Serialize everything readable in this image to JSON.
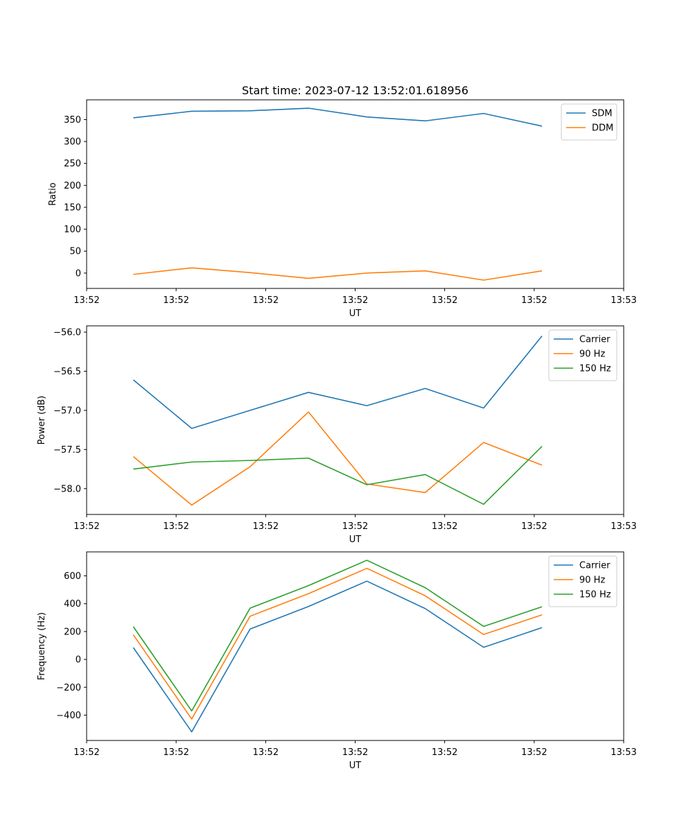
{
  "figure": {
    "title": "Start time: 2023-07-12 13:52:01.618956"
  },
  "colors": {
    "c0": "#1f77b4",
    "c1": "#ff7f0e",
    "c2": "#2ca02c"
  },
  "chart_data": [
    {
      "type": "line",
      "title": "Start time: 2023-07-12 13:52:01.618956",
      "xlabel": "UT",
      "ylabel": "Ratio",
      "x": [
        1,
        2,
        3,
        4,
        5,
        6,
        7,
        8
      ],
      "xlim": [
        0.2,
        9.4
      ],
      "x_ticks": [
        0.2,
        1.733,
        3.267,
        4.8,
        6.333,
        7.867,
        9.4
      ],
      "x_tick_labels": [
        "13:52",
        "13:52",
        "13:52",
        "13:52",
        "13:52",
        "13:52",
        "13:53"
      ],
      "ylim": [
        -35,
        395
      ],
      "y_ticks": [
        0,
        50,
        100,
        150,
        200,
        250,
        300,
        350
      ],
      "y_tick_labels": [
        "0",
        "50",
        "100",
        "150",
        "200",
        "250",
        "300",
        "350"
      ],
      "legend_position": "top-right",
      "series": [
        {
          "name": "SDM",
          "color_key": "c0",
          "values": [
            354,
            369,
            370,
            376,
            356,
            347,
            364,
            335
          ]
        },
        {
          "name": "DDM",
          "color_key": "c1",
          "values": [
            -3,
            12,
            1,
            -12,
            0,
            5,
            -16,
            5
          ]
        }
      ]
    },
    {
      "type": "line",
      "title": "",
      "xlabel": "UT",
      "ylabel": "Power (dB)",
      "x": [
        1,
        2,
        3,
        4,
        5,
        6,
        7,
        8
      ],
      "xlim": [
        0.2,
        9.4
      ],
      "x_ticks": [
        0.2,
        1.733,
        3.267,
        4.8,
        6.333,
        7.867,
        9.4
      ],
      "x_tick_labels": [
        "13:52",
        "13:52",
        "13:52",
        "13:52",
        "13:52",
        "13:52",
        "13:53"
      ],
      "ylim": [
        -58.33,
        -55.92
      ],
      "y_ticks": [
        -58.0,
        -57.5,
        -57.0,
        -56.5,
        -56.0
      ],
      "y_tick_labels": [
        "−58.0",
        "−57.5",
        "−57.0",
        "−56.5",
        "−56.0"
      ],
      "legend_position": "top-right",
      "series": [
        {
          "name": "Carrier",
          "color_key": "c0",
          "values": [
            -56.61,
            -57.23,
            -57.0,
            -56.77,
            -56.94,
            -56.72,
            -56.97,
            -56.05
          ]
        },
        {
          "name": "90 Hz",
          "color_key": "c1",
          "values": [
            -57.59,
            -58.21,
            -57.72,
            -57.02,
            -57.94,
            -58.05,
            -57.41,
            -57.7
          ]
        },
        {
          "name": "150 Hz",
          "color_key": "c2",
          "values": [
            -57.75,
            -57.66,
            -57.64,
            -57.61,
            -57.95,
            -57.82,
            -58.2,
            -57.46
          ]
        }
      ]
    },
    {
      "type": "line",
      "title": "",
      "xlabel": "UT",
      "ylabel": "Frequency (Hz)",
      "x": [
        1,
        2,
        3,
        4,
        5,
        6,
        7,
        8
      ],
      "xlim": [
        0.2,
        9.4
      ],
      "x_ticks": [
        0.2,
        1.733,
        3.267,
        4.8,
        6.333,
        7.867,
        9.4
      ],
      "x_tick_labels": [
        "13:52",
        "13:52",
        "13:52",
        "13:52",
        "13:52",
        "13:52",
        "13:53"
      ],
      "ylim": [
        -582,
        772
      ],
      "y_ticks": [
        -400,
        -200,
        0,
        200,
        400,
        600
      ],
      "y_tick_labels": [
        "−400",
        "−200",
        "0",
        "200",
        "400",
        "600"
      ],
      "legend_position": "top-right",
      "series": [
        {
          "name": "Carrier",
          "color_key": "c0",
          "values": [
            85,
            -520,
            218,
            380,
            562,
            365,
            87,
            228
          ]
        },
        {
          "name": "90 Hz",
          "color_key": "c1",
          "values": [
            177,
            -428,
            310,
            472,
            654,
            457,
            179,
            320
          ]
        },
        {
          "name": "150 Hz",
          "color_key": "c2",
          "values": [
            235,
            -370,
            368,
            530,
            712,
            515,
            237,
            378
          ]
        }
      ]
    }
  ]
}
